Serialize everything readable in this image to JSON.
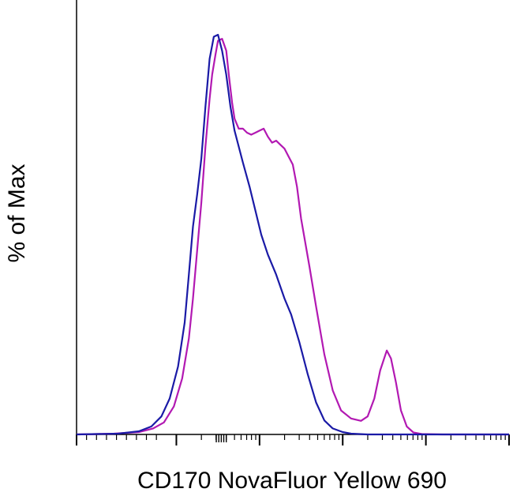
{
  "chart_data": {
    "type": "line",
    "title": "",
    "xlabel": "CD170 NovaFluor Yellow 690",
    "ylabel": "% of Max",
    "x_scale": "log",
    "xlim": [
      -0.3,
      4.9
    ],
    "ylim": [
      0,
      100
    ],
    "grid": false,
    "legend": "none",
    "series": [
      {
        "color": "#b219b2",
        "points": [
          [
            -0.3,
            0
          ],
          [
            0.15,
            0.2
          ],
          [
            0.45,
            0.6
          ],
          [
            0.62,
            1.5
          ],
          [
            0.75,
            3
          ],
          [
            0.87,
            7
          ],
          [
            0.97,
            14
          ],
          [
            1.05,
            24
          ],
          [
            1.1,
            34
          ],
          [
            1.15,
            46
          ],
          [
            1.2,
            58
          ],
          [
            1.25,
            72
          ],
          [
            1.3,
            84
          ],
          [
            1.33,
            90
          ],
          [
            1.37,
            95
          ],
          [
            1.4,
            98.5
          ],
          [
            1.45,
            99
          ],
          [
            1.5,
            96
          ],
          [
            1.53,
            90
          ],
          [
            1.57,
            83
          ],
          [
            1.6,
            79
          ],
          [
            1.65,
            76.5
          ],
          [
            1.7,
            76.5
          ],
          [
            1.75,
            75.5
          ],
          [
            1.8,
            75
          ],
          [
            1.85,
            75.5
          ],
          [
            1.9,
            76
          ],
          [
            1.95,
            76.5
          ],
          [
            2.0,
            74.5
          ],
          [
            2.05,
            73
          ],
          [
            2.1,
            73.5
          ],
          [
            2.15,
            72.5
          ],
          [
            2.2,
            71.5
          ],
          [
            2.25,
            69.5
          ],
          [
            2.3,
            67.5
          ],
          [
            2.35,
            62
          ],
          [
            2.4,
            54
          ],
          [
            2.5,
            42
          ],
          [
            2.58,
            32
          ],
          [
            2.68,
            20
          ],
          [
            2.78,
            11
          ],
          [
            2.88,
            6
          ],
          [
            3.0,
            4
          ],
          [
            3.12,
            3.4
          ],
          [
            3.2,
            4.5
          ],
          [
            3.28,
            9
          ],
          [
            3.35,
            16
          ],
          [
            3.43,
            21
          ],
          [
            3.48,
            19
          ],
          [
            3.54,
            13
          ],
          [
            3.6,
            6
          ],
          [
            3.67,
            2
          ],
          [
            3.75,
            0.5
          ],
          [
            3.85,
            0.1
          ],
          [
            4.1,
            0
          ],
          [
            4.9,
            0
          ]
        ]
      },
      {
        "color": "#1a1aa6",
        "points": [
          [
            -0.3,
            0
          ],
          [
            0.2,
            0.2
          ],
          [
            0.45,
            0.8
          ],
          [
            0.6,
            2
          ],
          [
            0.72,
            4.5
          ],
          [
            0.82,
            9
          ],
          [
            0.92,
            17
          ],
          [
            1.0,
            28
          ],
          [
            1.05,
            40
          ],
          [
            1.1,
            52
          ],
          [
            1.15,
            60
          ],
          [
            1.2,
            69
          ],
          [
            1.25,
            82
          ],
          [
            1.3,
            94
          ],
          [
            1.35,
            99.5
          ],
          [
            1.4,
            100
          ],
          [
            1.45,
            96
          ],
          [
            1.5,
            90
          ],
          [
            1.55,
            82
          ],
          [
            1.6,
            76
          ],
          [
            1.7,
            68
          ],
          [
            1.78,
            62
          ],
          [
            1.85,
            56
          ],
          [
            1.92,
            50
          ],
          [
            2.0,
            45
          ],
          [
            2.1,
            40
          ],
          [
            2.2,
            34
          ],
          [
            2.28,
            30
          ],
          [
            2.38,
            23
          ],
          [
            2.48,
            15
          ],
          [
            2.58,
            8
          ],
          [
            2.68,
            3.5
          ],
          [
            2.78,
            1.5
          ],
          [
            2.9,
            0.6
          ],
          [
            3.0,
            0.2
          ],
          [
            3.2,
            0
          ],
          [
            4.9,
            0
          ]
        ]
      }
    ]
  }
}
